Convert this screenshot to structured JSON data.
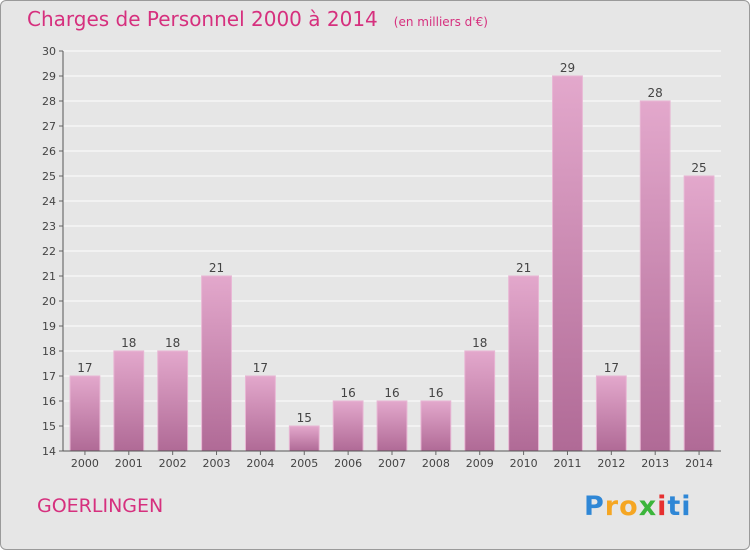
{
  "header": {
    "title": "Charges de Personnel 2000 à 2014",
    "subtitle": "(en milliers d'€)"
  },
  "footer": {
    "commune": "GOERLINGEN",
    "brand": "Proxiti"
  },
  "colors": {
    "title": "#d6307e",
    "bar_light": "#e3a8cc",
    "bar_dark": "#b06a96",
    "grid": "#ffffff",
    "background": "#e6e6e6"
  },
  "chart_data": {
    "type": "bar",
    "title": "Charges de Personnel 2000 à 2014",
    "subtitle": "(en milliers d'€)",
    "xlabel": "",
    "ylabel": "",
    "categories": [
      "2000",
      "2001",
      "2002",
      "2003",
      "2004",
      "2005",
      "2006",
      "2007",
      "2008",
      "2009",
      "2010",
      "2011",
      "2012",
      "2013",
      "2014"
    ],
    "values": [
      17,
      18,
      18,
      21,
      17,
      15,
      16,
      16,
      16,
      18,
      21,
      29,
      17,
      28,
      25
    ],
    "ylim": [
      14,
      30
    ],
    "yticks": [
      14,
      15,
      16,
      17,
      18,
      19,
      20,
      21,
      22,
      23,
      24,
      25,
      26,
      27,
      28,
      29,
      30
    ],
    "grid": true,
    "legend": "none"
  }
}
